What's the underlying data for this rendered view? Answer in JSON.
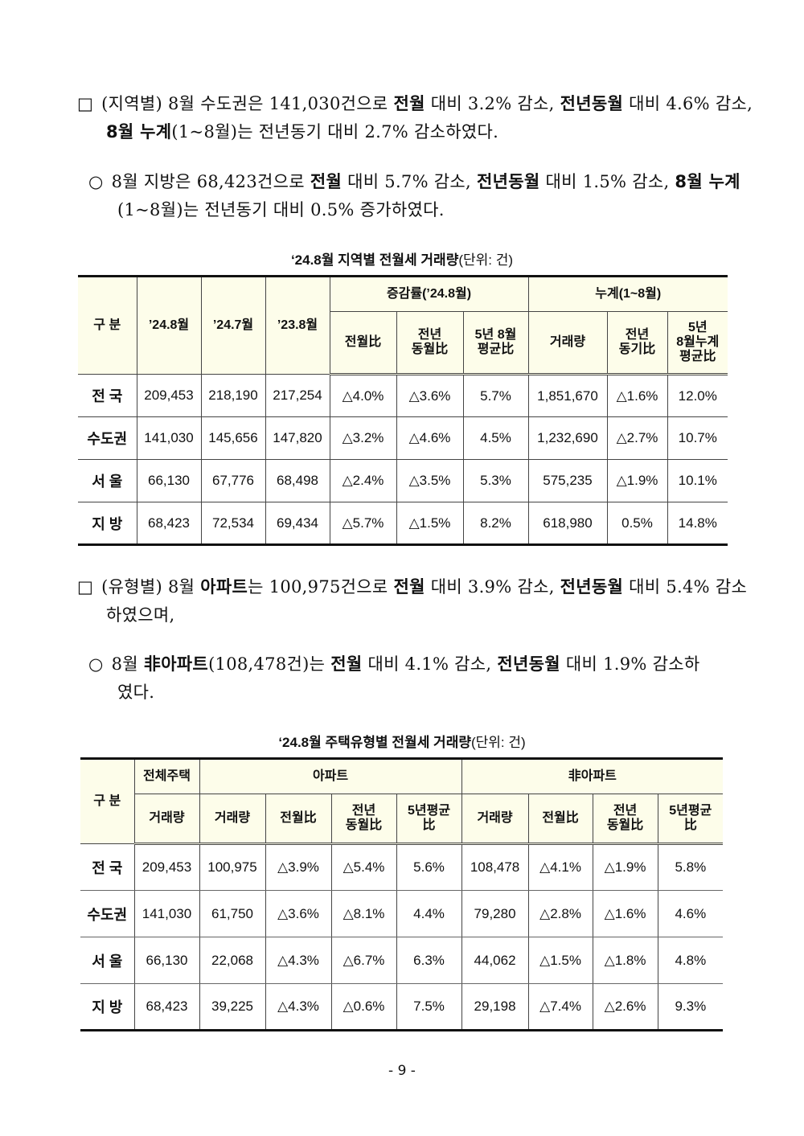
{
  "paragraphs": [
    {
      "marker": "□",
      "segments": [
        {
          "t": "(지역별) 8월 수도권은 141,030건으로 "
        },
        {
          "t": "전월",
          "b": true
        },
        {
          "t": " 대비 3.2% 감소, "
        },
        {
          "t": "전년동월",
          "b": true
        },
        {
          "t": " 대비 4.6% 감소, "
        },
        {
          "t": "8월 누계",
          "b": true
        },
        {
          "t": "(1~8월)는 전년동기 대비 2.7% 감소하였다."
        }
      ]
    },
    {
      "marker": "○",
      "segments": [
        {
          "t": "8월 지방은 68,423건으로 "
        },
        {
          "t": "전월",
          "b": true
        },
        {
          "t": " 대비 5.7% 감소, "
        },
        {
          "t": "전년동월",
          "b": true
        },
        {
          "t": " 대비 1.5% 감소, "
        },
        {
          "t": "8월 누계",
          "b": true
        },
        {
          "t": "(1~8월)는 전년동기 대비 0.5% 증가하였다."
        }
      ]
    },
    {
      "marker": "□",
      "segments": [
        {
          "t": "(유형별) 8월 "
        },
        {
          "t": "아파트",
          "b": true
        },
        {
          "t": "는 100,975건으로 "
        },
        {
          "t": "전월",
          "b": true
        },
        {
          "t": " 대비 3.9% 감소, "
        },
        {
          "t": "전년동월",
          "b": true
        },
        {
          "t": " 대비 5.4% 감소하였으며,"
        }
      ]
    },
    {
      "marker": "○",
      "segments": [
        {
          "t": "8월 "
        },
        {
          "t": "非아파트",
          "b": true
        },
        {
          "t": "(108,478건)는 "
        },
        {
          "t": "전월",
          "b": true
        },
        {
          "t": " 대비 4.1% 감소, "
        },
        {
          "t": "전년동월",
          "b": true
        },
        {
          "t": " 대비 1.9% 감소하였다."
        }
      ]
    }
  ],
  "table1": {
    "title": "‘24.8월 지역별 전월세 거래량",
    "unit": "(단위: 건)",
    "h": {
      "gubun": "구 분",
      "c1": "’24.8월",
      "c2": "’24.7월",
      "c3": "’23.8월",
      "grp1": "증감률(’24.8월)",
      "grp2": "누계(1~8월)",
      "s1": "전월比",
      "s2": "전년\n동월比",
      "s3": "5년 8월\n평균比",
      "s4": "거래량",
      "s5": "전년\n동기比",
      "s6": "5년\n8월누계\n평균比"
    },
    "rows": [
      [
        "전 국",
        "209,453",
        "218,190",
        "217,254",
        "△4.0%",
        "△3.6%",
        "5.7%",
        "1,851,670",
        "△1.6%",
        "12.0%"
      ],
      [
        "수도권",
        "141,030",
        "145,656",
        "147,820",
        "△3.2%",
        "△4.6%",
        "4.5%",
        "1,232,690",
        "△2.7%",
        "10.7%"
      ],
      [
        "서 울",
        "66,130",
        "67,776",
        "68,498",
        "△2.4%",
        "△3.5%",
        "5.3%",
        "575,235",
        "△1.9%",
        "10.1%"
      ],
      [
        "지 방",
        "68,423",
        "72,534",
        "69,434",
        "△5.7%",
        "△1.5%",
        "8.2%",
        "618,980",
        "0.5%",
        "14.8%"
      ]
    ]
  },
  "table2": {
    "title": "‘24.8월 주택유형별 전월세 거래량",
    "unit": "(단위: 건)",
    "h": {
      "gubun": "구 분",
      "grp0": "전체주택",
      "grp1": "아파트",
      "grp2": "非아파트",
      "s0": "거래량",
      "s1": "거래량",
      "s2": "전월比",
      "s3": "전년\n동월比",
      "s4": "5년평균\n比",
      "s5": "거래량",
      "s6": "전월比",
      "s7": "전년\n동월比",
      "s8": "5년평균\n比"
    },
    "rows": [
      [
        "전 국",
        "209,453",
        "100,975",
        "△3.9%",
        "△5.4%",
        "5.6%",
        "108,478",
        "△4.1%",
        "△1.9%",
        "5.8%"
      ],
      [
        "수도권",
        "141,030",
        "61,750",
        "△3.6%",
        "△8.1%",
        "4.4%",
        "79,280",
        "△2.8%",
        "△1.6%",
        "4.6%"
      ],
      [
        "서 울",
        "66,130",
        "22,068",
        "△4.3%",
        "△6.7%",
        "6.3%",
        "44,062",
        "△1.5%",
        "△1.8%",
        "4.8%"
      ],
      [
        "지 방",
        "68,423",
        "39,225",
        "△4.3%",
        "△0.6%",
        "7.5%",
        "29,198",
        "△7.4%",
        "△2.6%",
        "9.3%"
      ]
    ]
  },
  "page_number": "- 9 -"
}
